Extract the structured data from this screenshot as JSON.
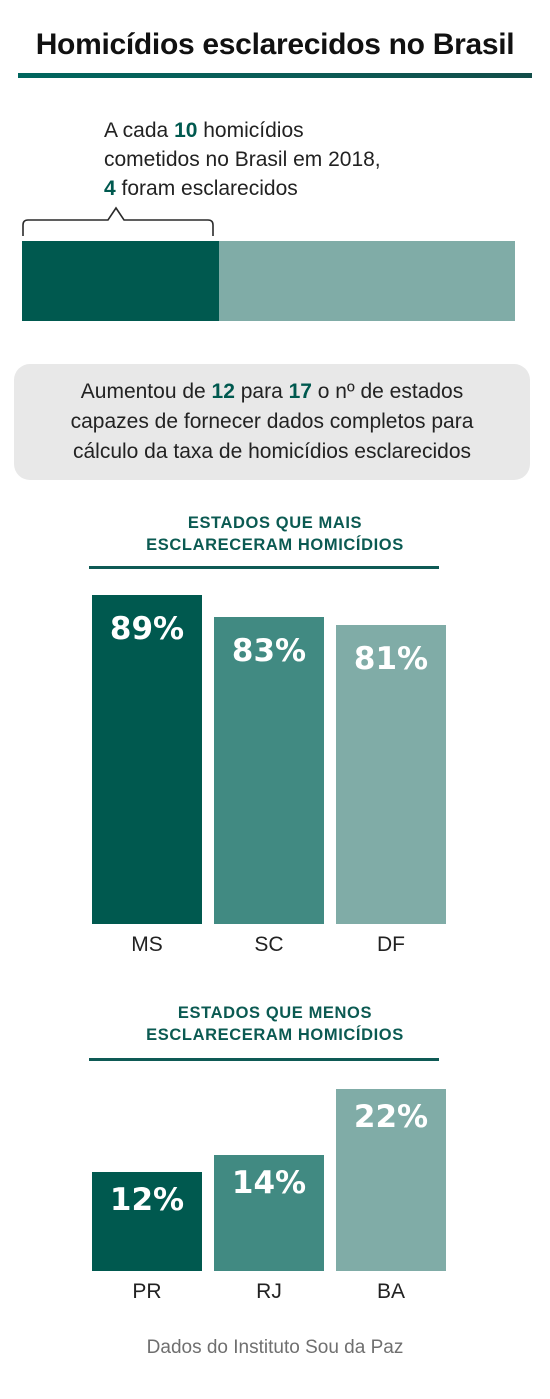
{
  "title": "Homicídios esclarecidos no Brasil",
  "intro": {
    "line1_pre": "A cada ",
    "line1_num": "10",
    "line1_post": " homicídios",
    "line2": "cometidos no Brasil em 2018,",
    "line3_num": "4",
    "line3_post": " foram esclarecidos",
    "fraction": 0.4
  },
  "note": {
    "part1": "Aumentou de ",
    "num1": "12",
    "part2": " para ",
    "num2": "17",
    "part3": " o nº de estados",
    "line2": "capazes de fornecer dados completos para",
    "line3": "cálculo da taxa de homicídios esclarecidos"
  },
  "colors": {
    "dark": "#00594f",
    "mid": "#418a82",
    "light": "#80aca7"
  },
  "chart_data": [
    {
      "type": "bar",
      "title_line1": "ESTADOS QUE MAIS",
      "title_line2": "ESCLARECERAM HOMICÍDIOS",
      "categories": [
        "MS",
        "SC",
        "DF"
      ],
      "values": [
        89,
        83,
        81
      ],
      "labels": [
        "89%",
        "83%",
        "81%"
      ]
    },
    {
      "type": "bar",
      "title_line1": "ESTADOS QUE MENOS",
      "title_line2": "ESCLARECERAM HOMICÍDIOS",
      "categories": [
        "PR",
        "RJ",
        "BA"
      ],
      "values": [
        12,
        14,
        22
      ],
      "labels": [
        "12%",
        "14%",
        "22%"
      ]
    }
  ],
  "source": "Dados do Instituto Sou da Paz"
}
